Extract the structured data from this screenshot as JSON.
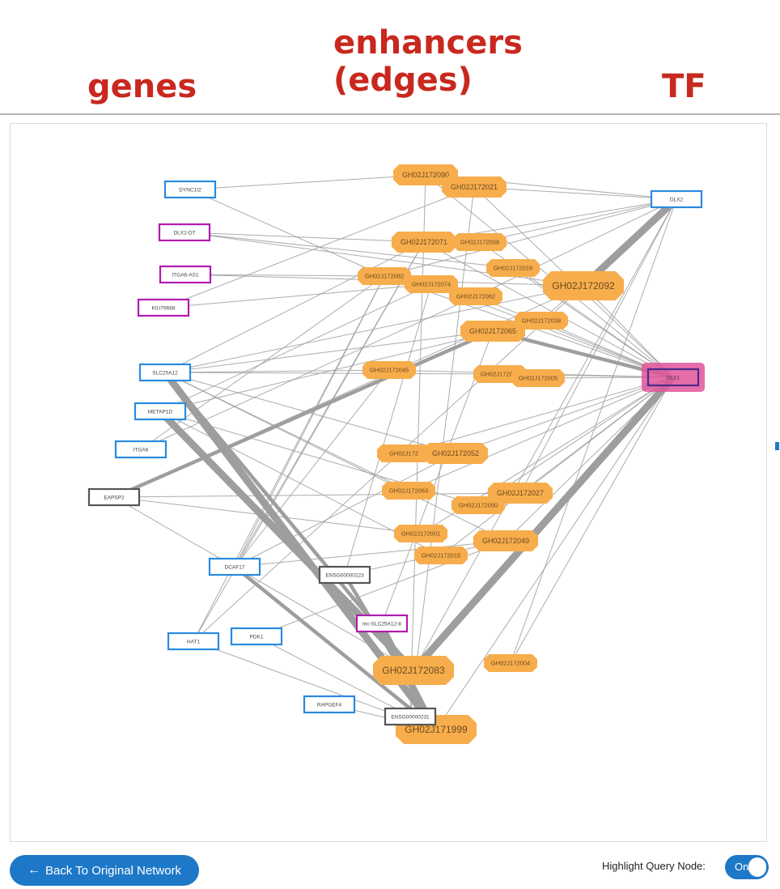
{
  "headers": {
    "genes": "genes",
    "enhancers_line1": "enhancers",
    "enhancers_line2": "(edges)",
    "tf": "TF"
  },
  "colors": {
    "gene_blue": "#2a8ae0",
    "gene_purple": "#b01bb0",
    "gene_gray": "#555555",
    "enhancer": "#f7ad4c",
    "query_highlight": "#e0559a",
    "edge": "#9e9e9e",
    "button": "#1e78c8"
  },
  "nodes": {
    "genes": [
      {
        "id": "DYNC1I2",
        "label": "DYNC1I2",
        "type": "blue"
      },
      {
        "id": "DLX2-DT",
        "label": "DLX2-DT",
        "type": "purple"
      },
      {
        "id": "ITGA6-AS1",
        "label": "ITGA6-AS1",
        "type": "purple"
      },
      {
        "id": "KIU79668",
        "label": "KIU79668",
        "type": "purple"
      },
      {
        "id": "SLC25A12",
        "label": "SLC25A12",
        "type": "blue"
      },
      {
        "id": "METAP1D",
        "label": "METAP1D",
        "type": "blue"
      },
      {
        "id": "ITGA6",
        "label": "ITGA6",
        "type": "blue"
      },
      {
        "id": "EAPSP2",
        "label": "EAPSP2",
        "type": "gray"
      },
      {
        "id": "DCAF17",
        "label": "DCAF17",
        "type": "blue"
      },
      {
        "id": "ENSG0",
        "label": "ENSG00000223",
        "type": "gray"
      },
      {
        "id": "lnc-SLC25A12",
        "label": "lnc-SLC25A12-8",
        "type": "purple"
      },
      {
        "id": "HAT1",
        "label": "HAT1",
        "type": "blue"
      },
      {
        "id": "PDK1",
        "label": "PDK1",
        "type": "blue"
      },
      {
        "id": "RAPGEF4",
        "label": "RAPGEF4",
        "type": "blue"
      },
      {
        "id": "ENSG1",
        "label": "ENSG00000231",
        "type": "gray"
      }
    ],
    "tfs": [
      {
        "id": "DLX2",
        "label": "DLX2",
        "type": "blue"
      },
      {
        "id": "DLX1",
        "label": "DLX1",
        "type": "query"
      }
    ],
    "enhancers": [
      {
        "id": "GH02J172090",
        "label": "GH02J172090",
        "size": "m"
      },
      {
        "id": "GH02J172021",
        "label": "GH02J172021",
        "size": "m"
      },
      {
        "id": "GH02J172071",
        "label": "GH02J172071",
        "size": "m"
      },
      {
        "id": "GH02J172008",
        "label": "GH02J172008",
        "size": "s"
      },
      {
        "id": "GH02J172016",
        "label": "GH02J172016",
        "size": "s"
      },
      {
        "id": "GH02J172092",
        "label": "GH02J172092",
        "size": "l"
      },
      {
        "id": "GH02J172082",
        "label": "GH02J172082",
        "size": "s"
      },
      {
        "id": "GH02J172074",
        "label": "GH02J172074",
        "size": "s"
      },
      {
        "id": "GH02J172062",
        "label": "GH02J172062",
        "size": "s"
      },
      {
        "id": "GH02J172038",
        "label": "GH02J172038",
        "size": "s"
      },
      {
        "id": "GH02J172065",
        "label": "GH02J172065",
        "size": "m"
      },
      {
        "id": "GH02J172045",
        "label": "GH02J172045",
        "size": "s"
      },
      {
        "id": "GH02J172010",
        "label": "GH02J172010",
        "size": "s"
      },
      {
        "id": "GH02J172005",
        "label": "GH02J172005",
        "size": "s"
      },
      {
        "id": "GH02J172072",
        "label": "GH02J172",
        "size": "s"
      },
      {
        "id": "GH02J172052",
        "label": "GH02J172052",
        "size": "m"
      },
      {
        "id": "GH02J172063",
        "label": "GH02J172063",
        "size": "s"
      },
      {
        "id": "GH02J172027",
        "label": "GH02J172027",
        "size": "m"
      },
      {
        "id": "GH02J172050",
        "label": "GH02J172050",
        "size": "s"
      },
      {
        "id": "GH02J172001",
        "label": "GH02J172001",
        "size": "s"
      },
      {
        "id": "GH02J172049",
        "label": "GH02J172049",
        "size": "m"
      },
      {
        "id": "GH02J172015",
        "label": "GH02J172015",
        "size": "s"
      },
      {
        "id": "GH02J172083",
        "label": "GH02J172083",
        "size": "l"
      },
      {
        "id": "GH02J172004",
        "label": "GH02J172004",
        "size": "s"
      },
      {
        "id": "GH02J171999",
        "label": "GH02J171999",
        "size": "l"
      }
    ]
  },
  "edges": [
    [
      "DLX2",
      "GH02J172092",
      3
    ],
    [
      "DLX1",
      "GH02J172083",
      3
    ],
    [
      "DLX1",
      "GH02J172065",
      2
    ],
    [
      "SLC25A12",
      "GH02J171999",
      3
    ],
    [
      "METAP1D",
      "GH02J172083",
      3
    ],
    [
      "EAPSP2",
      "GH02J172065",
      2
    ],
    [
      "SLC25A12",
      "GH02J172083",
      2
    ],
    [
      "DCAF17",
      "GH02J171999",
      2
    ],
    [
      "ENSG0",
      "GH02J171999",
      2
    ],
    [
      "lnc-SLC25A12",
      "GH02J171999",
      2
    ],
    [
      "EAPSP2",
      "GH02J172083",
      1
    ],
    [
      "HAT1",
      "GH02J171999",
      1
    ],
    [
      "DYNC1I2",
      "GH02J172090",
      1
    ],
    [
      "DYNC1I2",
      "GH02J172082",
      1
    ],
    [
      "DLX2-DT",
      "GH02J172071",
      1
    ],
    [
      "DLX2-DT",
      "GH02J172092",
      1
    ],
    [
      "DLX2-DT",
      "GH02J172016",
      1
    ],
    [
      "ITGA6-AS1",
      "GH02J172082",
      1
    ],
    [
      "ITGA6-AS1",
      "GH02J172092",
      1
    ],
    [
      "KIU79668",
      "GH02J172074",
      1
    ],
    [
      "KIU79668",
      "GH02J172021",
      1
    ],
    [
      "SLC25A12",
      "GH02J172045",
      1
    ],
    [
      "SLC25A12",
      "GH02J172092",
      1
    ],
    [
      "SLC25A12",
      "GH02J172071",
      1
    ],
    [
      "SLC25A12",
      "GH02J172065",
      1
    ],
    [
      "SLC25A12",
      "GH02J172010",
      1
    ],
    [
      "SLC25A12",
      "GH02J172052",
      1
    ],
    [
      "SLC25A12",
      "GH02J172063",
      1
    ],
    [
      "SLC25A12",
      "GH02J172049",
      1
    ],
    [
      "METAP1D",
      "GH02J172074",
      1
    ],
    [
      "METAP1D",
      "GH02J172038",
      1
    ],
    [
      "METAP1D",
      "GH02J172050",
      1
    ],
    [
      "METAP1D",
      "GH02J172015",
      1
    ],
    [
      "ITGA6",
      "GH02J172082",
      1
    ],
    [
      "ITGA6",
      "GH02J172062",
      1
    ],
    [
      "EAPSP2",
      "GH02J172092",
      1
    ],
    [
      "EAPSP2",
      "GH02J172001",
      1
    ],
    [
      "EAPSP2",
      "GH02J172027",
      1
    ],
    [
      "DCAF17",
      "GH02J172082",
      1
    ],
    [
      "DCAF17",
      "GH02J172071",
      1
    ],
    [
      "DCAF17",
      "GH02J172045",
      1
    ],
    [
      "DCAF17",
      "GH02J172052",
      1
    ],
    [
      "DCAF17",
      "GH02J172049",
      1
    ],
    [
      "ENSG0",
      "GH02J172049",
      1
    ],
    [
      "ENSG0",
      "GH02J172074",
      1
    ],
    [
      "lnc-SLC25A12",
      "GH02J172065",
      1
    ],
    [
      "HAT1",
      "GH02J172082",
      1
    ],
    [
      "HAT1",
      "GH02J172071",
      1
    ],
    [
      "HAT1",
      "GH02J172092",
      1
    ],
    [
      "PDK1",
      "GH02J171999",
      1
    ],
    [
      "PDK1",
      "GH02J172049",
      1
    ],
    [
      "RAPGEF4",
      "GH02J171999",
      1
    ],
    [
      "ENSG1",
      "GH02J172021",
      1
    ],
    [
      "ENSG1",
      "GH02J172090",
      1
    ],
    [
      "GH02J172090",
      "DLX2",
      1
    ],
    [
      "GH02J172090",
      "DLX1",
      1
    ],
    [
      "GH02J172021",
      "DLX2",
      1
    ],
    [
      "GH02J172021",
      "DLX1",
      1
    ],
    [
      "GH02J172071",
      "DLX2",
      1
    ],
    [
      "GH02J172071",
      "DLX1",
      1
    ],
    [
      "GH02J172008",
      "DLX2",
      1
    ],
    [
      "GH02J172008",
      "DLX1",
      1
    ],
    [
      "GH02J172016",
      "DLX1",
      1
    ],
    [
      "GH02J172092",
      "DLX1",
      1
    ],
    [
      "GH02J172082",
      "DLX2",
      1
    ],
    [
      "GH02J172082",
      "DLX1",
      1
    ],
    [
      "GH02J172074",
      "DLX1",
      1
    ],
    [
      "GH02J172062",
      "DLX2",
      1
    ],
    [
      "GH02J172062",
      "DLX1",
      1
    ],
    [
      "GH02J172038",
      "DLX1",
      1
    ],
    [
      "GH02J172038",
      "DLX2",
      1
    ],
    [
      "GH02J172045",
      "DLX1",
      1
    ],
    [
      "GH02J172010",
      "DLX1",
      1
    ],
    [
      "GH02J172005",
      "DLX1",
      1
    ],
    [
      "GH02J172072",
      "DLX1",
      1
    ],
    [
      "GH02J172052",
      "DLX1",
      1
    ],
    [
      "GH02J172063",
      "DLX1",
      1
    ],
    [
      "GH02J172027",
      "DLX1",
      1
    ],
    [
      "GH02J172050",
      "DLX1",
      1
    ],
    [
      "GH02J172001",
      "DLX1",
      1
    ],
    [
      "GH02J172049",
      "DLX1",
      1
    ],
    [
      "GH02J172015",
      "DLX1",
      1
    ],
    [
      "GH02J172004",
      "DLX1",
      1
    ],
    [
      "GH02J171999",
      "DLX1",
      1
    ],
    [
      "GH02J172083",
      "DLX2",
      1
    ],
    [
      "GH02J172004",
      "DLX2",
      1
    ],
    [
      "GH02J172027",
      "DLX2",
      1
    ]
  ],
  "back_button": {
    "label": "Back To Original Network",
    "icon": "arrow-left-icon"
  },
  "highlight": {
    "label": "Highlight Query Node:",
    "toggle_text": "On"
  }
}
